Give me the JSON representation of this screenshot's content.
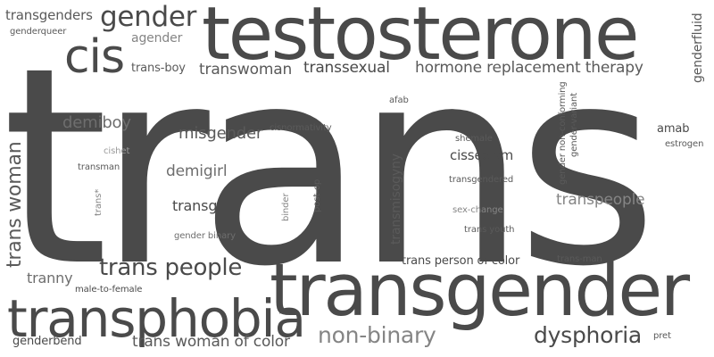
{
  "words": {
    "trans": "trans",
    "testosterone": "testosterone",
    "transgender": "transgender",
    "transphobia": "transphobia",
    "cis": "cis",
    "gender": "gender",
    "transgenders": "transgenders",
    "genderqueer": "genderqueer",
    "agender": "agender",
    "trans_boy": "trans-boy",
    "transwoman": "transwoman",
    "transsexual": "transsexual",
    "hormone_replacement_therapy": "hormone replacement therapy",
    "genderfluid": "genderfluid",
    "trans_woman": "trans woman",
    "demiboy": "demiboy",
    "cishet": "cishet",
    "transman": "transman",
    "trans_star": "trans*",
    "misgender": "misgender",
    "cisnormativity": "cisnormativity",
    "demigirl": "demigirl",
    "transgirl": "transgirl",
    "binder": "binder",
    "post_op": "post-op",
    "gender_binary": "gender binary",
    "afab": "afab",
    "transmisogyny": "transmisogyny",
    "shemale": "shemale",
    "cissexism": "cissexism",
    "transgendered": "transgendered",
    "sex_change": "sex-change",
    "trans_youth": "trans youth",
    "gender_non_conforming": "gender non-conforming",
    "gender_variant": "gender-variant",
    "amab": "amab",
    "estrogen": "estrogen",
    "transpeople": "transpeople",
    "trans_people": "trans people",
    "trans_person_of_color": "trans person of color",
    "trans_man": "trans-man",
    "tranny": "tranny",
    "male_to_female": "male-to-female",
    "genderbend": "genderbend",
    "trans_woman_of_color": "trans woman of color",
    "non_binary": "non-binary",
    "dysphoria": "dysphoria",
    "pret": "pret"
  },
  "colors": {
    "dark": "#4a4a4a",
    "mid": "#5a5a5a",
    "medium": "#6e6e6e",
    "light": "#858585",
    "lighter": "#9a9a9a",
    "background": "#ffffff"
  }
}
